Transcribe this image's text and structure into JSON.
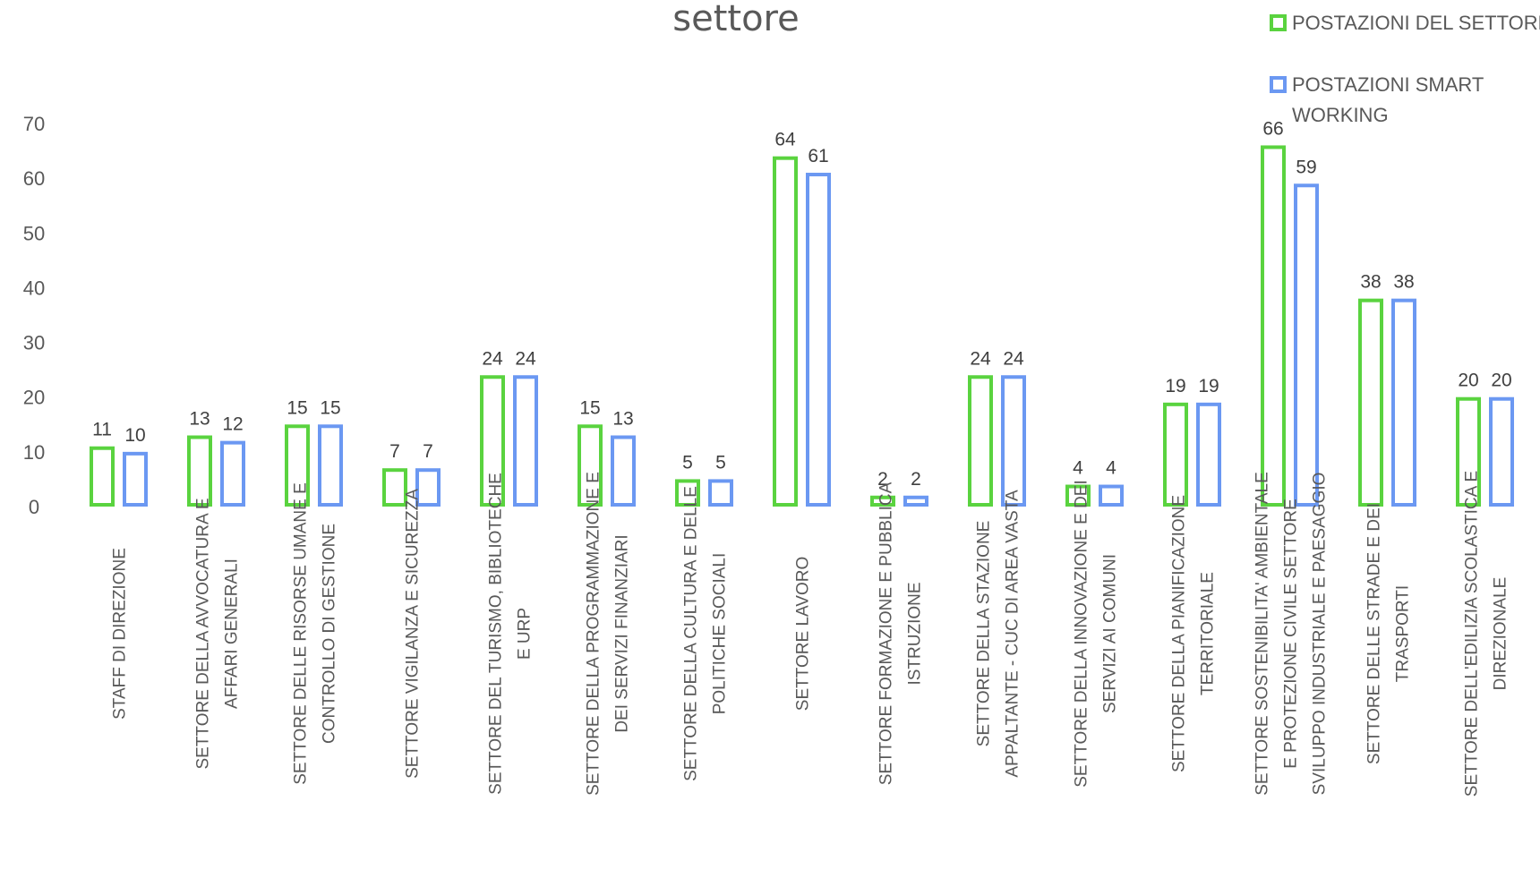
{
  "chart_data": {
    "type": "bar",
    "title": "settore",
    "xlabel": "",
    "ylabel": "",
    "ylim": [
      0,
      70
    ],
    "yticks": [
      0,
      10,
      20,
      30,
      40,
      50,
      60,
      70
    ],
    "grid": false,
    "legend_position": "top-right",
    "categories": [
      [
        "STAFF DI DIREZIONE"
      ],
      [
        "SETTORE DELLA AVVOCATURA E",
        "AFFARI GENERALI"
      ],
      [
        "SETTORE DELLE RISORSE UMANE E",
        "CONTROLLO DI GESTIONE"
      ],
      [
        "SETTORE VIGILANZA E SICUREZZA"
      ],
      [
        "SETTORE  DEL TURISMO, BIBLIOTECHE",
        "E URP"
      ],
      [
        "SETTORE DELLA PROGRAMMAZIONE E",
        "DEI SERVIZI FINANZIARI"
      ],
      [
        "SETTORE  DELLA CULTURA E DELLE",
        "POLITICHE SOCIALI"
      ],
      [
        "SETTORE LAVORO"
      ],
      [
        "SETTORE FORMAZIONE E PUBBLICA",
        "ISTRUZIONE"
      ],
      [
        "SETTORE DELLA STAZIONE",
        "APPALTANTE - CUC DI AREA VASTA"
      ],
      [
        "SETTORE  DELLA INNOVAZIONE E DEI",
        "SERVIZI AI COMUNI"
      ],
      [
        "SETTORE DELLA PIANIFICAZIONE",
        "TERRITORIALE"
      ],
      [
        "SETTORE SOSTENIBILITA' AMBIENTALE",
        "E PROTEZIONE CIVILE SETTORE",
        "SVILUPPO INDUSTRIALE E PAESAGGIO"
      ],
      [
        "SETTORE DELLE STRADE E DEI",
        "TRASPORTI"
      ],
      [
        "SETTORE DELL'EDILIZIA SCOLASTICA E",
        "DIREZIONALE"
      ]
    ],
    "series": [
      {
        "name": "POSTAZIONI DEL SETTORE",
        "legend_lines": [
          "POSTAZIONI DEL SETTORE"
        ],
        "color": "#5ad33f",
        "values": [
          11,
          13,
          15,
          7,
          24,
          15,
          5,
          64,
          2,
          24,
          4,
          19,
          66,
          38,
          20
        ]
      },
      {
        "name": "POSTAZIONI SMART WORKING",
        "legend_lines": [
          "POSTAZIONI SMART",
          "WORKING"
        ],
        "color": "#6b98f2",
        "values": [
          10,
          12,
          15,
          7,
          24,
          13,
          5,
          61,
          2,
          24,
          4,
          19,
          59,
          38,
          20
        ]
      }
    ]
  }
}
